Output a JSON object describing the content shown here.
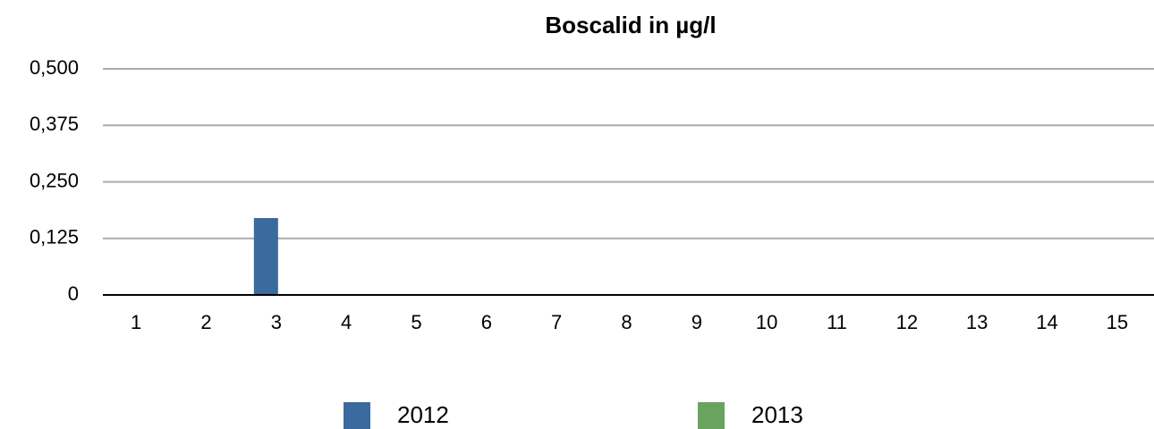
{
  "chart_data": {
    "type": "bar",
    "title": "Boscalid in µg/l",
    "categories": [
      "1",
      "2",
      "3",
      "4",
      "5",
      "6",
      "7",
      "8",
      "9",
      "10",
      "11",
      "12",
      "13",
      "14",
      "15"
    ],
    "series": [
      {
        "name": "2012",
        "color": "#3b6a9f",
        "values": [
          0,
          0,
          0.17,
          0,
          0,
          0,
          0,
          0,
          0,
          0,
          0,
          0,
          0,
          0,
          0
        ]
      },
      {
        "name": "2013",
        "color": "#6aa360",
        "values": [
          0,
          0,
          0,
          0,
          0,
          0,
          0,
          0,
          0,
          0,
          0,
          0,
          0,
          0,
          0
        ]
      }
    ],
    "ylim": [
      0,
      0.5
    ],
    "yticks": [
      0,
      {
        "value": 0.125,
        "label": "0,125"
      },
      {
        "value": 0.25,
        "label": "0,250"
      },
      {
        "value": 0.375,
        "label": "0,375"
      },
      {
        "value": 0.5,
        "label": "0,500"
      }
    ],
    "grid": true,
    "legend": "bottom"
  }
}
